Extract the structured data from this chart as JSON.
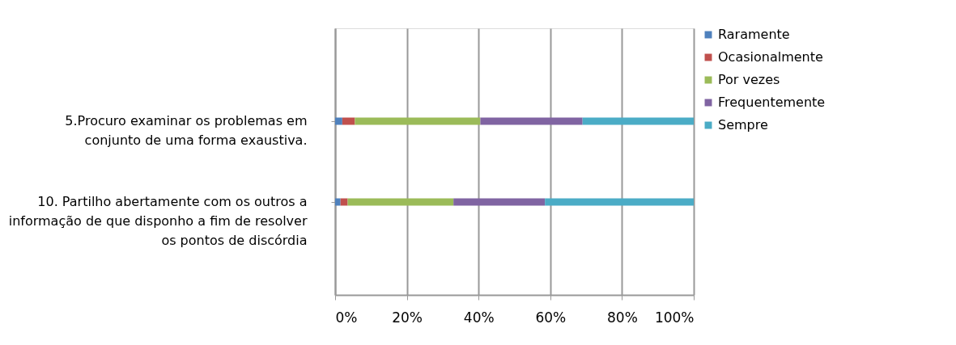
{
  "chart_data": {
    "type": "bar",
    "orientation": "horizontal",
    "stacked": true,
    "categories": [
      "5.Procuro examinar os problemas em\nconjunto de uma forma exaustiva.",
      "10. Partilho abertamente com os outros a\ninformação de que disponho a fim de resolver\nos pontos de discórdia"
    ],
    "series": [
      {
        "name": "Raramente",
        "color": "#4f81bd",
        "values": [
          2,
          1.5
        ]
      },
      {
        "name": "Ocasionalmente",
        "color": "#c0504d",
        "values": [
          3.5,
          2
        ]
      },
      {
        "name": "Por vezes",
        "color": "#9bbb59",
        "values": [
          35,
          29.5
        ]
      },
      {
        "name": "Frequentemente",
        "color": "#8064a2",
        "values": [
          28.5,
          25.5
        ]
      },
      {
        "name": "Sempre",
        "color": "#4bacc6",
        "values": [
          31,
          41.5
        ]
      }
    ],
    "xlim": [
      0,
      100
    ],
    "xticks": [
      {
        "value": 0,
        "label": "0%"
      },
      {
        "value": 20,
        "label": "20%"
      },
      {
        "value": 40,
        "label": "40%"
      },
      {
        "value": 60,
        "label": "60%"
      },
      {
        "value": 80,
        "label": "80%"
      },
      {
        "value": 100,
        "label": "100%"
      }
    ],
    "grid": "x",
    "legend": "right"
  }
}
